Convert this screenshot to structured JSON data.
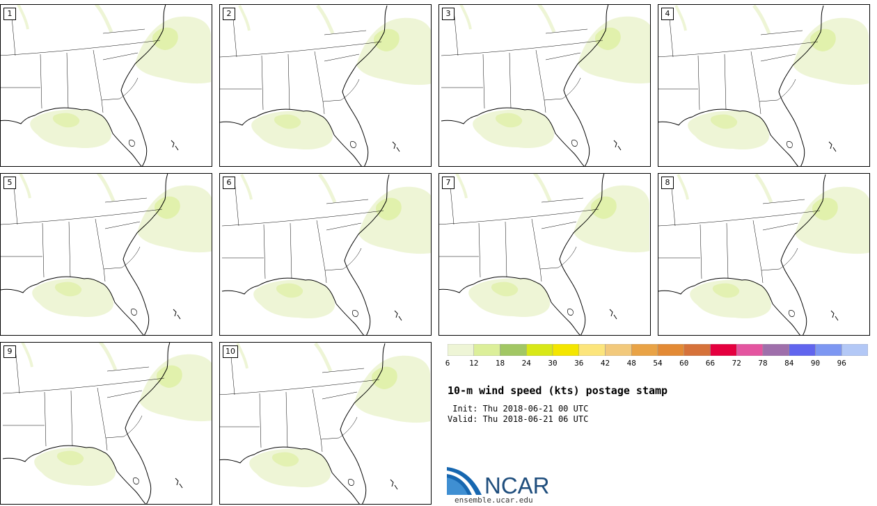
{
  "stamps": [
    {
      "label": "1"
    },
    {
      "label": "2"
    },
    {
      "label": "3"
    },
    {
      "label": "4"
    },
    {
      "label": "5"
    },
    {
      "label": "6"
    },
    {
      "label": "7"
    },
    {
      "label": "8"
    },
    {
      "label": "9"
    },
    {
      "label": "10"
    }
  ],
  "colorbar": {
    "colors": [
      "#eef5d6",
      "#dcef9a",
      "#a2c764",
      "#d8e818",
      "#f4e600",
      "#fce57c",
      "#f2c97c",
      "#e9a346",
      "#e38a35",
      "#d6723a",
      "#e5003f",
      "#e455a0",
      "#9f6fab",
      "#6165ee",
      "#7d97f2",
      "#b3c8f6"
    ],
    "ticks": [
      "6",
      "12",
      "18",
      "24",
      "30",
      "36",
      "42",
      "48",
      "54",
      "60",
      "66",
      "72",
      "78",
      "84",
      "90",
      "96"
    ]
  },
  "title": "10-m wind speed (kts) postage stamp",
  "init": " Init: Thu 2018-06-21 00 UTC",
  "valid": "Valid: Thu 2018-06-21 06 UTC",
  "logo": {
    "text": "NCAR",
    "url": "ensemble.ucar.edu"
  }
}
